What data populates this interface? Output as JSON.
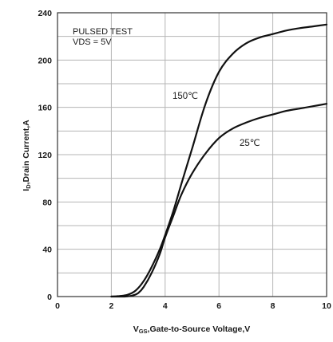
{
  "chart_data": {
    "type": "line",
    "title": "",
    "xlabel": "V",
    "xlabel_sub": "GS",
    "xlabel_rest": ",Gate-to-Source Voltage,V",
    "ylabel": "I",
    "ylabel_sub": "D",
    "ylabel_rest": ",Drain Current,A",
    "xlim": [
      0,
      10
    ],
    "ylim": [
      0,
      240
    ],
    "x_ticks": [
      0,
      2,
      4,
      6,
      8,
      10
    ],
    "y_ticks": [
      0,
      40,
      80,
      120,
      160,
      200,
      240
    ],
    "grid": true,
    "notes": [
      "PULSED TEST",
      "VDS = 5V"
    ],
    "series": [
      {
        "name": "150℃",
        "x": [
          2.0,
          2.3,
          2.6,
          2.9,
          3.2,
          3.5,
          3.8,
          4.0,
          4.3,
          4.6,
          5.0,
          5.5,
          6.0,
          6.5,
          7.0,
          7.5,
          8.0,
          8.5,
          9.0,
          9.5,
          10.0
        ],
        "values": [
          0,
          0.5,
          1.5,
          5,
          13,
          25,
          40,
          52,
          72,
          95,
          125,
          163,
          190,
          205,
          214,
          219,
          222,
          225,
          227,
          228.5,
          230
        ]
      },
      {
        "name": "25℃",
        "x": [
          2.0,
          2.5,
          2.8,
          3.0,
          3.2,
          3.5,
          3.8,
          4.0,
          4.3,
          4.6,
          5.0,
          5.5,
          6.0,
          6.5,
          7.0,
          7.5,
          8.0,
          8.5,
          9.0,
          9.5,
          10.0
        ],
        "values": [
          0,
          0,
          1,
          3,
          8,
          20,
          36,
          50,
          68,
          86,
          104,
          121,
          134,
          142,
          147,
          151,
          154,
          157,
          159,
          161,
          163
        ]
      }
    ]
  }
}
